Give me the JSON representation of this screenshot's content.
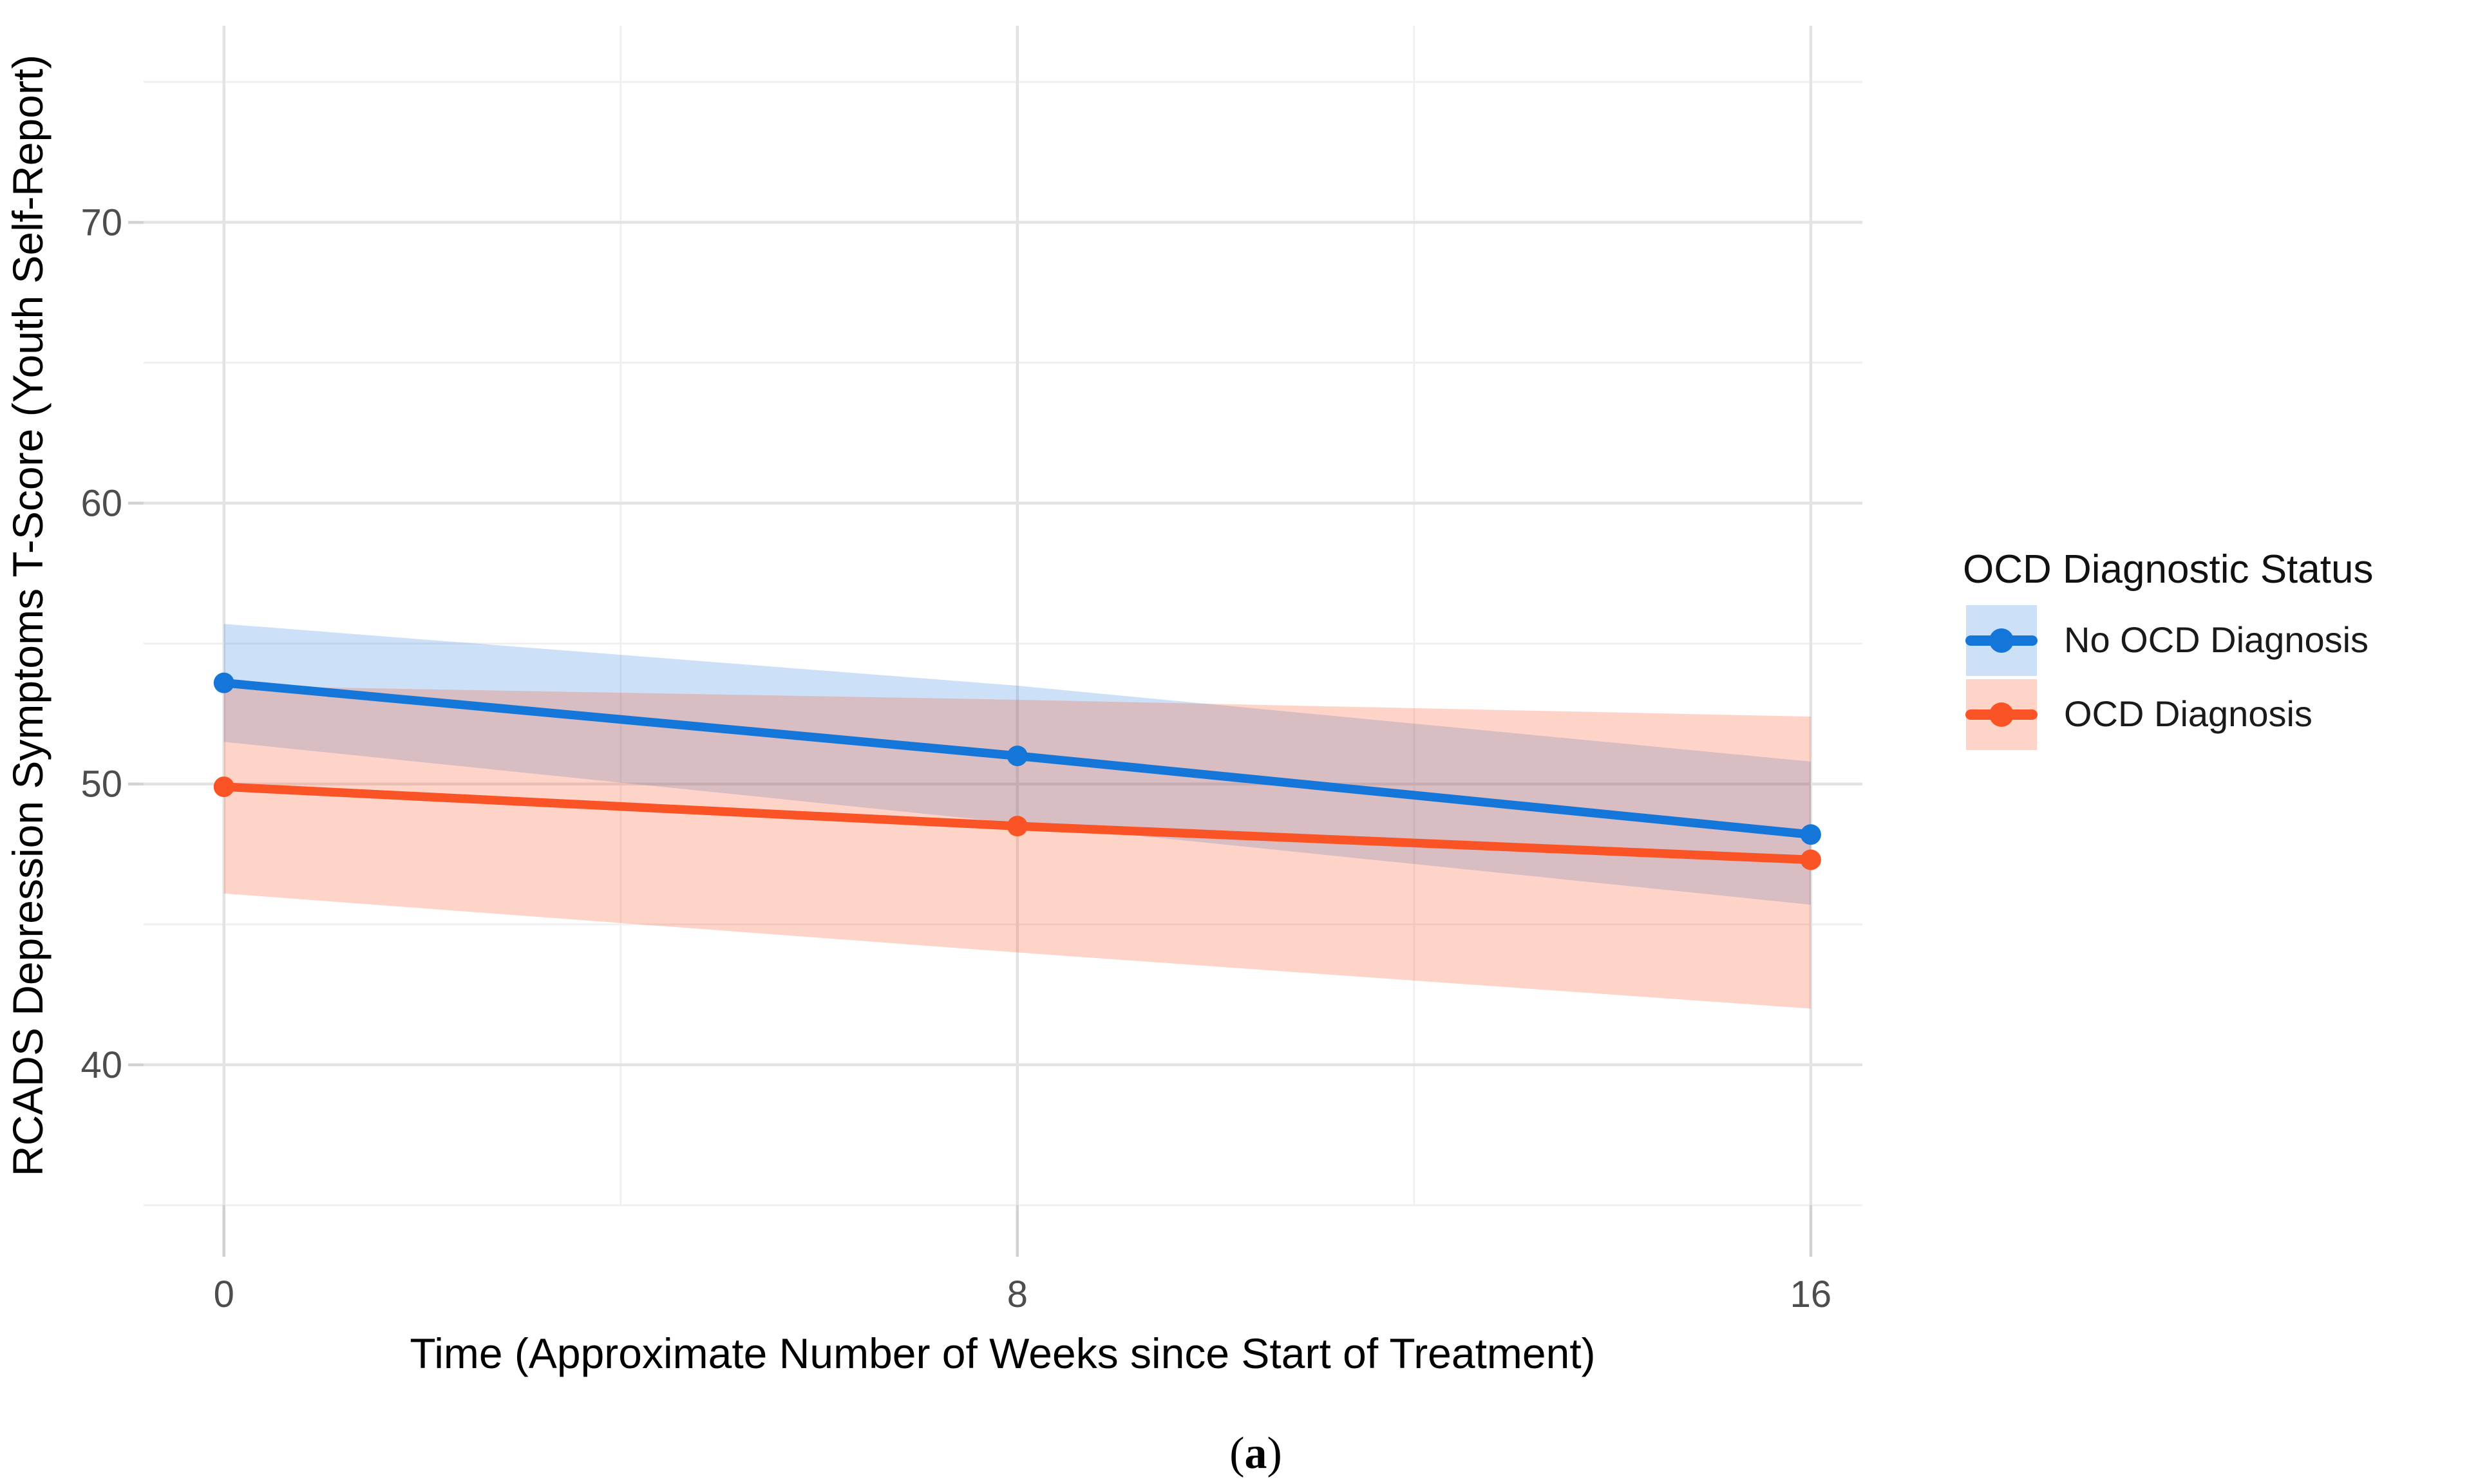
{
  "figure": {
    "background": "#ffffff",
    "caption": "(a)",
    "caption_open": "(",
    "caption_letter": "a",
    "caption_close": ")"
  },
  "chart_data": {
    "type": "line",
    "title": "",
    "xlabel": "Time (Approximate Number of Weeks since Start of Treatment)",
    "ylabel": "RCADS Depression Symptoms T-Score (Youth Self-Report)",
    "legend_title": "OCD Diagnostic Status",
    "legend_position": "right",
    "grid": "major and minor gridlines, white panel background",
    "x": [
      0,
      8,
      16
    ],
    "x_ticks": [
      0,
      8,
      16
    ],
    "x_minor_gridlines": [
      4,
      12
    ],
    "y_ticks": [
      40,
      50,
      60,
      70
    ],
    "y_minor_gridlines": [
      35,
      45,
      55,
      65,
      75
    ],
    "xlim": [
      -0.81,
      16.52
    ],
    "ylim": [
      35,
      77
    ],
    "colors": {
      "no_ocd_line": "#1576D9",
      "no_ocd_ribbon": "rgba(21,118,217,0.22)",
      "ocd_line": "#FA5426",
      "ocd_ribbon": "rgba(250,84,38,0.25)",
      "major_grid": "#e3e3e3",
      "minor_grid": "#f0f0f0",
      "tick_mark": "#d2d2d2",
      "tick_text": "#4d4d4d"
    },
    "series": [
      {
        "name": "No OCD Diagnosis",
        "color": "#1576D9",
        "ribbon_fill": "rgba(21,118,217,0.22)",
        "values": [
          53.6,
          51.0,
          48.2
        ],
        "ci_upper": [
          55.7,
          53.5,
          50.8
        ],
        "ci_lower": [
          51.5,
          48.6,
          45.7
        ]
      },
      {
        "name": "OCD Diagnosis",
        "color": "#FA5426",
        "ribbon_fill": "rgba(250,84,38,0.25)",
        "values": [
          49.9,
          48.5,
          47.3
        ],
        "ci_upper": [
          53.5,
          53.0,
          52.4
        ],
        "ci_lower": [
          46.1,
          44.0,
          42.0
        ]
      }
    ]
  }
}
